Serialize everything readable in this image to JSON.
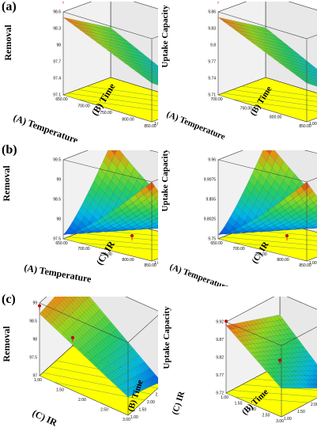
{
  "figure": {
    "row_labels": [
      "(a)",
      "(b)",
      "(c)"
    ]
  },
  "chart_data": [
    {
      "type": "surface",
      "panel": "a-left",
      "zlabel": "Removal",
      "xlabel": "(A) Temperature",
      "ylabel": "(B) Time",
      "x_ticks": [
        "650.00",
        "700.00",
        "750.00",
        "800.00",
        "850.00"
      ],
      "y_ticks": [
        "1.00",
        "1.50",
        "2.00",
        "2.50",
        "3.00"
      ],
      "z_ticks": [
        "97.1",
        "97.4",
        "97.7",
        "98",
        "98.3",
        "98.6"
      ],
      "xlim": [
        650,
        850
      ],
      "ylim": [
        1,
        3
      ],
      "zlim": [
        97.1,
        98.6
      ],
      "corners": {
        "x0y0": 98.5,
        "x1y0": 97.8,
        "x0y1": 98.0,
        "x1y1": 97.2
      },
      "design_points": [
        98.75,
        97.2
      ]
    },
    {
      "type": "surface",
      "panel": "a-right",
      "zlabel": "Uptake Capacity",
      "xlabel": "(A) Temperature",
      "ylabel": "(B) Time",
      "x_ticks": [
        "700.00",
        "750.00",
        "800.00",
        "850.00"
      ],
      "y_ticks": [
        "1.00",
        "1.50",
        "2.00",
        "2.50",
        "3.00"
      ],
      "z_ticks": [
        "9.71",
        "9.74",
        "9.77",
        "9.8",
        "9.83",
        "9.86"
      ],
      "xlim": [
        650,
        850
      ],
      "ylim": [
        1,
        3
      ],
      "zlim": [
        9.71,
        9.86
      ],
      "corners": {
        "x0y0": 9.85,
        "x1y0": 9.78,
        "x0y1": 9.8,
        "x1y1": 9.72
      },
      "design_points": [
        9.875,
        9.72
      ]
    },
    {
      "type": "surface",
      "panel": "b-left",
      "zlabel": "Removal",
      "xlabel": "(A) Temperature",
      "ylabel": "(C) IR",
      "x_ticks": [
        "650.00",
        "700.00",
        "750.00",
        "800.00",
        "850.00"
      ],
      "y_ticks": [
        "1.00",
        "1.50",
        "2.00",
        "2.50",
        "3.00"
      ],
      "z_ticks": [
        "97.5",
        "98",
        "98.5",
        "99",
        "99.5"
      ],
      "xlim": [
        650,
        850
      ],
      "ylim": [
        1,
        3
      ],
      "zlim": [
        97.5,
        99.5
      ],
      "shape": "saddle",
      "design_points": [
        99.5,
        99.0,
        97.5
      ]
    },
    {
      "type": "surface",
      "panel": "b-right",
      "zlabel": "Uptake Capacity",
      "xlabel": "(A) Temperature",
      "ylabel": "(C) IR",
      "x_ticks": [
        "650.00",
        "700.00",
        "750.00",
        "800.00",
        "850.00"
      ],
      "y_ticks": [
        "1.00",
        "1.50",
        "2.00",
        "2.50",
        "3.00"
      ],
      "z_ticks": [
        "9.75",
        "9.8025",
        "9.855",
        "9.9075",
        "9.96"
      ],
      "xlim": [
        650,
        850
      ],
      "ylim": [
        1,
        3
      ],
      "zlim": [
        9.75,
        9.96
      ],
      "shape": "saddle",
      "design_points": [
        9.96,
        9.9,
        9.75
      ]
    },
    {
      "type": "surface",
      "panel": "c-left",
      "zlabel": "Removal",
      "xlabel": "(C) IR",
      "ylabel": "(B) Time",
      "x_ticks": [
        "1.00",
        "1.50",
        "2.00",
        "2.50",
        "3.00"
      ],
      "y_ticks": [
        "1.00",
        "1.50",
        "2.00",
        "2.50",
        "3.00"
      ],
      "z_ticks": [
        "97",
        "97.5",
        "98",
        "98.5",
        "99"
      ],
      "xlim": [
        1,
        3
      ],
      "ylim": [
        1,
        3
      ],
      "zlim": [
        97,
        99
      ],
      "corners": {
        "x0y0": 98.7,
        "x1y0": 97.5,
        "x0y1": 98.9,
        "x1y1": 97.1
      },
      "design_points": [
        98.8,
        98.9,
        97.1
      ]
    },
    {
      "type": "surface",
      "panel": "c-right",
      "zlabel": "Uptake Capacity",
      "xlabel": "(C) IR",
      "ylabel": "(B) Time",
      "x_ticks": [
        "1.00",
        "1.50",
        "2.00",
        "2.50",
        "3.00"
      ],
      "y_ticks": [
        "1.00",
        "1.50",
        "2.00",
        "2.50",
        "3.00"
      ],
      "z_ticks": [
        "9.72",
        "9.77",
        "9.82",
        "9.87",
        "9.92"
      ],
      "xlim": [
        1,
        3
      ],
      "ylim": [
        1,
        3
      ],
      "zlim": [
        9.72,
        9.92
      ],
      "corners": {
        "x0y0": 9.91,
        "x1y0": 9.8,
        "x0y1": 9.86,
        "x1y1": 9.72
      },
      "design_points": [
        9.91,
        9.88,
        9.72
      ]
    }
  ]
}
